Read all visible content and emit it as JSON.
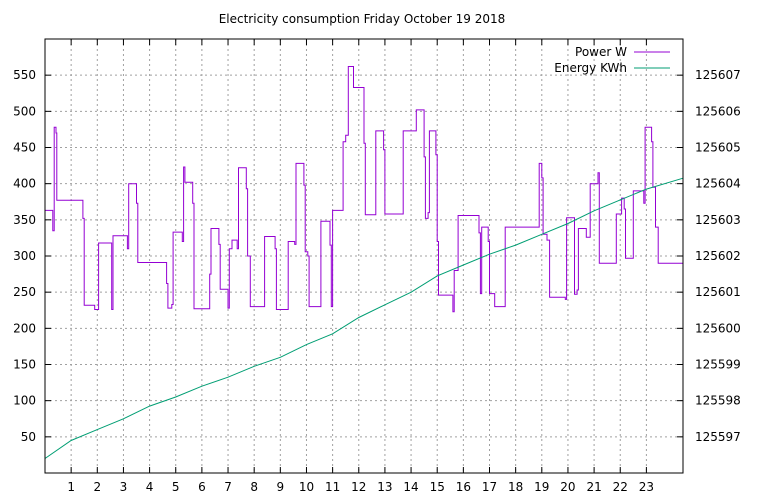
{
  "chart_data": {
    "type": "line",
    "title": "Electricity consumption Friday October 19 2018",
    "xlabel": "",
    "ylabel": "",
    "xlim": [
      0,
      24.4
    ],
    "ylim": [
      0,
      600
    ],
    "y2lim": [
      125596,
      125608
    ],
    "x_ticks": [
      1,
      2,
      3,
      4,
      5,
      6,
      7,
      8,
      9,
      10,
      11,
      12,
      13,
      14,
      15,
      16,
      17,
      18,
      19,
      20,
      21,
      22,
      23
    ],
    "y_ticks": [
      50,
      100,
      150,
      200,
      250,
      300,
      350,
      400,
      450,
      500,
      550
    ],
    "y2_ticks": [
      125597,
      125598,
      125599,
      125600,
      125601,
      125602,
      125603,
      125604,
      125605,
      125606,
      125607
    ],
    "grid": true,
    "legend_position": "top-right",
    "series": [
      {
        "name": "Power W",
        "axis": "left",
        "color": "#9400d3",
        "step": true,
        "points": [
          [
            0,
            363
          ],
          [
            0.3,
            335
          ],
          [
            0.35,
            478
          ],
          [
            0.42,
            470
          ],
          [
            0.45,
            377
          ],
          [
            1.45,
            352
          ],
          [
            1.5,
            232
          ],
          [
            1.9,
            226
          ],
          [
            2.05,
            318
          ],
          [
            2.55,
            226
          ],
          [
            2.6,
            328
          ],
          [
            3.15,
            310
          ],
          [
            3.2,
            400
          ],
          [
            3.5,
            373
          ],
          [
            3.55,
            291
          ],
          [
            4.65,
            262
          ],
          [
            4.7,
            228
          ],
          [
            4.85,
            233
          ],
          [
            4.9,
            333
          ],
          [
            5.25,
            320
          ],
          [
            5.3,
            423
          ],
          [
            5.35,
            402
          ],
          [
            5.65,
            373
          ],
          [
            5.7,
            227
          ],
          [
            6.3,
            275
          ],
          [
            6.35,
            338
          ],
          [
            6.65,
            316
          ],
          [
            6.7,
            254
          ],
          [
            7.0,
            228
          ],
          [
            7.05,
            310
          ],
          [
            7.15,
            322
          ],
          [
            7.35,
            310
          ],
          [
            7.4,
            422
          ],
          [
            7.7,
            393
          ],
          [
            7.75,
            300
          ],
          [
            7.85,
            230
          ],
          [
            8.4,
            327
          ],
          [
            8.8,
            310
          ],
          [
            8.85,
            226
          ],
          [
            9.3,
            320
          ],
          [
            9.55,
            316
          ],
          [
            9.6,
            428
          ],
          [
            9.9,
            398
          ],
          [
            9.95,
            306
          ],
          [
            10.05,
            300
          ],
          [
            10.1,
            230
          ],
          [
            10.55,
            348
          ],
          [
            10.9,
            315
          ],
          [
            10.95,
            230
          ],
          [
            11.0,
            363
          ],
          [
            11.4,
            458
          ],
          [
            11.5,
            467
          ],
          [
            11.6,
            562
          ],
          [
            11.8,
            533
          ],
          [
            12.2,
            456
          ],
          [
            12.25,
            357
          ],
          [
            12.65,
            473
          ],
          [
            12.95,
            447
          ],
          [
            13.0,
            358
          ],
          [
            13.7,
            473
          ],
          [
            14.2,
            502
          ],
          [
            14.5,
            437
          ],
          [
            14.55,
            352
          ],
          [
            14.65,
            360
          ],
          [
            14.7,
            473
          ],
          [
            14.95,
            440
          ],
          [
            15.0,
            320
          ],
          [
            15.05,
            246
          ],
          [
            15.6,
            223
          ],
          [
            15.65,
            280
          ],
          [
            15.8,
            356
          ],
          [
            16.6,
            332
          ],
          [
            16.65,
            248
          ],
          [
            16.7,
            340
          ],
          [
            16.95,
            320
          ],
          [
            17.0,
            248
          ],
          [
            17.2,
            230
          ],
          [
            17.6,
            340
          ],
          [
            18.9,
            428
          ],
          [
            19.0,
            408
          ],
          [
            19.05,
            330
          ],
          [
            19.2,
            322
          ],
          [
            19.3,
            243
          ],
          [
            19.9,
            240
          ],
          [
            19.95,
            353
          ],
          [
            20.25,
            247
          ],
          [
            20.35,
            253
          ],
          [
            20.4,
            338
          ],
          [
            20.7,
            326
          ],
          [
            20.85,
            400
          ],
          [
            21.15,
            415
          ],
          [
            21.2,
            290
          ],
          [
            21.8,
            290
          ],
          [
            21.85,
            358
          ],
          [
            22.05,
            380
          ],
          [
            22.15,
            365
          ],
          [
            22.2,
            297
          ],
          [
            22.5,
            390
          ],
          [
            22.9,
            373
          ],
          [
            22.95,
            478
          ],
          [
            23.2,
            458
          ],
          [
            23.25,
            395
          ],
          [
            23.35,
            340
          ],
          [
            23.45,
            290
          ],
          [
            24.4,
            290
          ]
        ]
      },
      {
        "name": "Energy KWh",
        "axis": "right",
        "color": "#009e73",
        "step": false,
        "points": [
          [
            0,
            125596.4
          ],
          [
            1,
            125596.9
          ],
          [
            2,
            125597.2
          ],
          [
            3,
            125597.5
          ],
          [
            4,
            125597.85
          ],
          [
            5,
            125598.1
          ],
          [
            6,
            125598.4
          ],
          [
            7,
            125598.65
          ],
          [
            8,
            125598.95
          ],
          [
            9,
            125599.2
          ],
          [
            10,
            125599.55
          ],
          [
            11,
            125599.85
          ],
          [
            12,
            125600.3
          ],
          [
            13,
            125600.65
          ],
          [
            14,
            125601.0
          ],
          [
            15,
            125601.45
          ],
          [
            16,
            125601.75
          ],
          [
            17,
            125602.05
          ],
          [
            18,
            125602.3
          ],
          [
            19,
            125602.6
          ],
          [
            20,
            125602.9
          ],
          [
            21,
            125603.25
          ],
          [
            22,
            125603.55
          ],
          [
            23,
            125603.85
          ],
          [
            24.4,
            125604.15
          ]
        ]
      }
    ]
  }
}
